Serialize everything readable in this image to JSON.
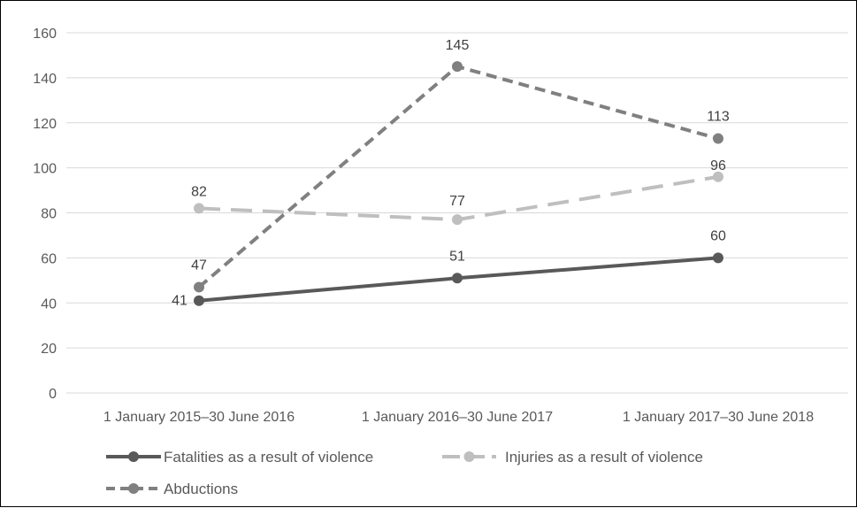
{
  "chart_data": {
    "type": "line",
    "title": "",
    "xlabel": "",
    "ylabel": "",
    "categories": [
      "1 January 2015–30 June 2016",
      "1 January 2016–30 June 2017",
      "1 January 2017–30 June 2018"
    ],
    "ylim": [
      0,
      160
    ],
    "yticks": [
      0,
      20,
      40,
      60,
      80,
      100,
      120,
      140,
      160
    ],
    "grid": true,
    "legend_position": "bottom",
    "series": [
      {
        "name": "Fatalities as a result of violence",
        "values": [
          41,
          51,
          60
        ],
        "color": "#595959",
        "line_style": "solid"
      },
      {
        "name": "Injuries as a result of violence",
        "values": [
          82,
          77,
          96
        ],
        "color": "#BFBFBF",
        "line_style": "long-dash"
      },
      {
        "name": "Abductions",
        "values": [
          47,
          145,
          113
        ],
        "color": "#808080",
        "line_style": "dash"
      }
    ]
  }
}
